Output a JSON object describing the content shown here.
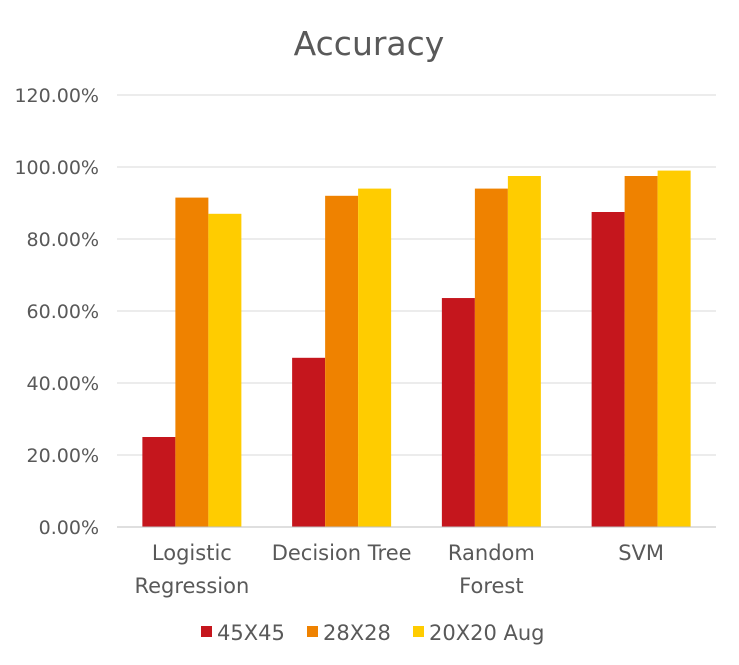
{
  "chart_data": {
    "type": "bar",
    "title": "Accuracy",
    "xlabel": "",
    "ylabel": "",
    "categories": [
      [
        "Logistic",
        "Regression"
      ],
      [
        "Decision Tree"
      ],
      [
        "Random",
        "Forest"
      ],
      [
        "SVM"
      ]
    ],
    "series": [
      {
        "name": "45X45",
        "color": "#c5161d",
        "values": [
          25.0,
          47.0,
          63.6,
          87.5
        ]
      },
      {
        "name": "28X28",
        "color": "#ef8200",
        "values": [
          91.5,
          92.0,
          94.0,
          97.5
        ]
      },
      {
        "name": "20X20 Aug",
        "color": "#ffcc00",
        "values": [
          87.0,
          94.0,
          97.5,
          99.0
        ]
      }
    ],
    "ylim": [
      0,
      120
    ],
    "yticks": [
      "0.00%",
      "20.00%",
      "40.00%",
      "60.00%",
      "80.00%",
      "100.00%",
      "120.00%"
    ],
    "ytick_values": [
      0,
      20,
      40,
      60,
      80,
      100,
      120
    ],
    "grid": true,
    "legend_position": "bottom"
  }
}
